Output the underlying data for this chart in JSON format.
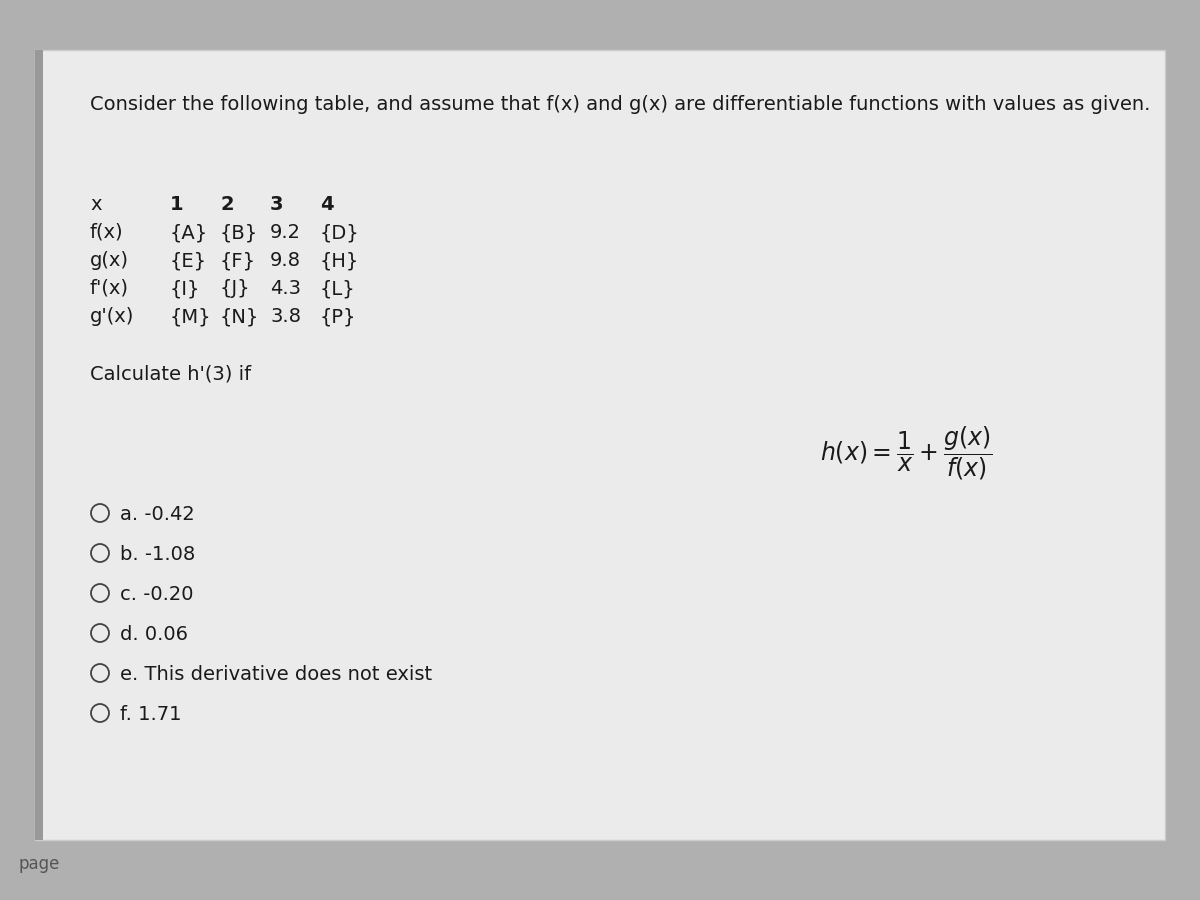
{
  "bg_color": "#b0b0b0",
  "card_color": "#ebebeb",
  "card_left_border_color": "#999999",
  "outer_bg_color": "#b8b8b8",
  "title": "Consider the following table, and assume that f(x) and g(x) are differentiable functions with values as given.",
  "table_header_cols": [
    "x",
    "1",
    "2",
    "3",
    "4"
  ],
  "table_rows": [
    [
      "f(x)",
      "{A}",
      "{B}",
      "9.2",
      "{D}"
    ],
    [
      "g(x)",
      "{E}",
      "{F}",
      "9.8",
      "{H}"
    ],
    [
      "f'(x)",
      "{I}",
      "{J}",
      "4.3",
      "{L}"
    ],
    [
      "g'(x)",
      "{M}",
      "{N}",
      "3.8",
      "{P}"
    ]
  ],
  "calc_label": "Calculate h'(3) if",
  "formula": "$h(x) = \\dfrac{1}{x} + \\dfrac{g(x)}{f(x)}$",
  "choices": [
    "a. -0.42",
    "b. -1.08",
    "c. -0.20",
    "d. 0.06",
    "e. This derivative does not exist",
    "f. 1.71"
  ],
  "page_label": "page",
  "text_color": "#1a1a1a",
  "title_fontsize": 14,
  "body_fontsize": 14,
  "choice_fontsize": 14,
  "formula_fontsize": 17
}
